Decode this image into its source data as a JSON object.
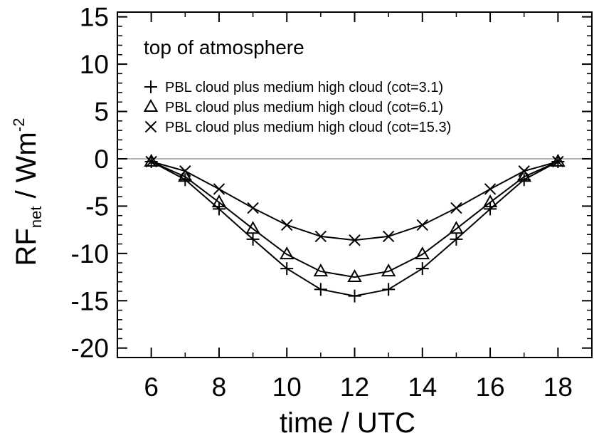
{
  "chart_data": {
    "type": "line",
    "annotation": "top of atmosphere",
    "xlabel": "time / UTC",
    "ylabel": {
      "main": "RF",
      "subscript": "net",
      "unit": " / Wm",
      "superscript": "-2"
    },
    "xlim": [
      5,
      19
    ],
    "ylim": [
      -21,
      15.5
    ],
    "xticks": [
      6,
      8,
      10,
      12,
      14,
      16,
      18
    ],
    "yticks": [
      15,
      10,
      5,
      0,
      -5,
      -10,
      -15,
      -20
    ],
    "reference_line": 0,
    "legend_position": "top-left",
    "x": [
      6,
      7,
      8,
      9,
      10,
      11,
      12,
      13,
      14,
      15,
      16,
      17,
      18
    ],
    "series": [
      {
        "name": "PBL cloud plus medium high cloud (cot=3.1)",
        "marker": "plus",
        "values": [
          -0.3,
          -2.2,
          -5.3,
          -8.5,
          -11.6,
          -13.8,
          -14.5,
          -13.8,
          -11.6,
          -8.5,
          -5.3,
          -2.2,
          -0.3
        ]
      },
      {
        "name": "PBL cloud plus medium high cloud (cot=6.1)",
        "marker": "triangle",
        "values": [
          -0.3,
          -1.9,
          -4.6,
          -7.4,
          -10.1,
          -11.9,
          -12.5,
          -11.9,
          -10.1,
          -7.4,
          -4.6,
          -1.9,
          -0.3
        ]
      },
      {
        "name": "PBL cloud plus medium high cloud (cot=15.3)",
        "marker": "cross",
        "values": [
          -0.3,
          -1.3,
          -3.2,
          -5.2,
          -7.0,
          -8.2,
          -8.6,
          -8.2,
          -7.0,
          -5.2,
          -3.2,
          -1.3,
          -0.3
        ]
      }
    ]
  }
}
